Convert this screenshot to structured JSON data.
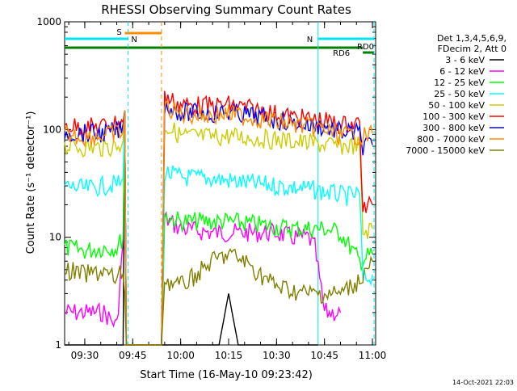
{
  "chart_data": {
    "type": "line",
    "title": "RHESSI Observing Summary Count Rates",
    "xlabel": "Start Time (16-May-10 09:23:42)",
    "ylabel": "Count Rate (s⁻¹ detector⁻¹)",
    "yscale": "log",
    "ylim": [
      1,
      1000
    ],
    "xlim": [
      "09:23:42",
      "11:01:00"
    ],
    "x_ticks": [
      "09:30",
      "09:45",
      "10:00",
      "10:15",
      "10:30",
      "10:45",
      "11:00"
    ],
    "y_ticks": [
      "1",
      "10",
      "100",
      "1000"
    ],
    "legend_header": [
      "Det 1,3,4,5,6,9,",
      "FDecim 2, Att 0"
    ],
    "legend_position": "right",
    "footer_timestamp": "14-Oct-2021 22:03",
    "flags": [
      {
        "label": "S",
        "color": "#ff8c00",
        "start": "09:42:30",
        "end": "09:54:00",
        "level": "upper"
      },
      {
        "label": "N",
        "color": "#00e5ee",
        "start": "09:23:42",
        "end": "09:43:30",
        "level": "upper-2"
      },
      {
        "label": "N",
        "color": "#00e5ee",
        "start": "10:43:00",
        "end": "11:00:30",
        "level": "upper-2"
      },
      {
        "label": "RD6",
        "color": "#008000",
        "start": "09:23:42",
        "end": "10:57:00",
        "level": "middle"
      },
      {
        "label": "RD0",
        "color": "#008000",
        "start": "10:57:00",
        "end": "11:00:30",
        "level": "upper-3"
      }
    ],
    "vertical_lines": [
      {
        "time": "09:43:30",
        "color": "#00e5ee",
        "style": "dashed"
      },
      {
        "time": "09:54:00",
        "color": "#ff8c00",
        "style": "dashed"
      },
      {
        "time": "10:43:00",
        "color": "#00e5ee",
        "style": "solid"
      },
      {
        "time": "11:00:30",
        "color": "#00e5ee",
        "style": "dashed"
      }
    ],
    "series": [
      {
        "name": "3 - 6 keV",
        "color": "#000000",
        "points": [
          [
            "09:23:42",
            1
          ],
          [
            "09:42:00",
            1
          ],
          [
            "09:42:30",
            150
          ],
          [
            "09:43:00",
            1
          ],
          [
            "10:12:00",
            1
          ],
          [
            "10:15:00",
            3
          ],
          [
            "10:18:00",
            1
          ],
          [
            "10:43:00",
            1
          ]
        ]
      },
      {
        "name": "6 - 12 keV",
        "color": "#ff00ff",
        "points": [
          [
            "09:23:42",
            2
          ],
          [
            "09:30:00",
            2
          ],
          [
            "09:36:00",
            2
          ],
          [
            "09:40:00",
            1.5
          ],
          [
            "09:42:00",
            9
          ],
          [
            "09:42:30",
            150
          ],
          [
            "09:43:00",
            1
          ],
          [
            "09:54:00",
            1
          ],
          [
            "09:55:00",
            15
          ],
          [
            "10:00:00",
            12
          ],
          [
            "10:10:00",
            11
          ],
          [
            "10:20:00",
            11
          ],
          [
            "10:30:00",
            11
          ],
          [
            "10:35:00",
            10
          ],
          [
            "10:40:00",
            10
          ],
          [
            "10:42:00",
            8
          ],
          [
            "10:45:00",
            2
          ],
          [
            "10:50:00",
            2
          ]
        ]
      },
      {
        "name": "12 - 25 keV",
        "color": "#00ff00",
        "points": [
          [
            "09:23:42",
            8
          ],
          [
            "09:30:00",
            7.5
          ],
          [
            "09:36:00",
            8
          ],
          [
            "09:40:00",
            8
          ],
          [
            "09:42:00",
            10
          ],
          [
            "09:42:30",
            150
          ],
          [
            "09:43:00",
            1
          ],
          [
            "09:54:00",
            1
          ],
          [
            "09:55:00",
            16
          ],
          [
            "10:00:00",
            14
          ],
          [
            "10:10:00",
            14
          ],
          [
            "10:15:00",
            14
          ],
          [
            "10:25:00",
            13
          ],
          [
            "10:35:00",
            12
          ],
          [
            "10:45:00",
            12
          ],
          [
            "10:50:00",
            11
          ],
          [
            "10:56:00",
            6
          ],
          [
            "11:00:00",
            7
          ]
        ]
      },
      {
        "name": "25 - 50 keV",
        "color": "#00ffff",
        "points": [
          [
            "09:23:42",
            30
          ],
          [
            "09:30:00",
            28
          ],
          [
            "09:36:00",
            30
          ],
          [
            "09:42:00",
            32
          ],
          [
            "09:42:30",
            150
          ],
          [
            "09:43:00",
            1
          ],
          [
            "09:54:00",
            1
          ],
          [
            "09:55:00",
            40
          ],
          [
            "10:00:00",
            36
          ],
          [
            "10:10:00",
            35
          ],
          [
            "10:20:00",
            32
          ],
          [
            "10:30:00",
            30
          ],
          [
            "10:40:00",
            28
          ],
          [
            "10:46:00",
            26
          ],
          [
            "10:52:00",
            24
          ],
          [
            "10:56:00",
            25
          ],
          [
            "10:57:00",
            4
          ],
          [
            "11:00:00",
            4.5
          ]
        ]
      },
      {
        "name": "50 - 100 keV",
        "color": "#cccc00",
        "points": [
          [
            "09:23:42",
            70
          ],
          [
            "09:30:00",
            68
          ],
          [
            "09:36:00",
            68
          ],
          [
            "09:42:00",
            72
          ],
          [
            "09:42:30",
            150
          ],
          [
            "09:43:00",
            1
          ],
          [
            "09:54:00",
            1
          ],
          [
            "09:55:00",
            110
          ],
          [
            "10:00:00",
            88
          ],
          [
            "10:10:00",
            85
          ],
          [
            "10:15:00",
            87
          ],
          [
            "10:25:00",
            82
          ],
          [
            "10:35:00",
            78
          ],
          [
            "10:45:00",
            72
          ],
          [
            "10:50:00",
            70
          ],
          [
            "10:56:00",
            72
          ],
          [
            "10:57:00",
            11
          ],
          [
            "11:00:00",
            12
          ]
        ]
      },
      {
        "name": "100 - 300 keV",
        "color": "#ff0000",
        "points": [
          [
            "09:23:42",
            110
          ],
          [
            "09:30:00",
            105
          ],
          [
            "09:36:00",
            108
          ],
          [
            "09:42:00",
            120
          ],
          [
            "09:42:30",
            150
          ],
          [
            "09:43:00",
            1
          ],
          [
            "09:54:00",
            1
          ],
          [
            "09:55:00",
            200
          ],
          [
            "10:00:00",
            170
          ],
          [
            "10:10:00",
            165
          ],
          [
            "10:15:00",
            170
          ],
          [
            "10:25:00",
            150
          ],
          [
            "10:35:00",
            130
          ],
          [
            "10:45:00",
            120
          ],
          [
            "10:50:00",
            110
          ],
          [
            "10:56:00",
            115
          ],
          [
            "10:57:00",
            18
          ],
          [
            "11:00:00",
            20
          ]
        ]
      },
      {
        "name": "300 - 800 keV",
        "color": "#0000ff",
        "points": [
          [
            "09:23:42",
            95
          ],
          [
            "09:30:00",
            92
          ],
          [
            "09:36:00",
            92
          ],
          [
            "09:42:00",
            100
          ],
          [
            "09:42:30",
            150
          ],
          [
            "09:43:00",
            1
          ],
          [
            "09:54:00",
            1
          ],
          [
            "09:55:00",
            170
          ],
          [
            "10:00:00",
            145
          ],
          [
            "10:10:00",
            140
          ],
          [
            "10:15:00",
            145
          ],
          [
            "10:25:00",
            130
          ],
          [
            "10:35:00",
            115
          ],
          [
            "10:45:00",
            105
          ],
          [
            "10:50:00",
            95
          ],
          [
            "10:56:00",
            92
          ],
          [
            "10:57:00",
            70
          ],
          [
            "11:00:00",
            72
          ]
        ]
      },
      {
        "name": "800 - 7000 keV",
        "color": "#ff8c00",
        "points": [
          [
            "09:23:42",
            90
          ],
          [
            "09:30:00",
            86
          ],
          [
            "09:36:00",
            88
          ],
          [
            "09:42:00",
            95
          ],
          [
            "09:42:30",
            150
          ],
          [
            "09:43:00",
            1
          ],
          [
            "09:54:00",
            1
          ],
          [
            "09:55:00",
            160
          ],
          [
            "10:00:00",
            140
          ],
          [
            "10:10:00",
            135
          ],
          [
            "10:15:00",
            140
          ],
          [
            "10:25:00",
            125
          ],
          [
            "10:35:00",
            112
          ],
          [
            "10:45:00",
            100
          ],
          [
            "10:50:00",
            88
          ],
          [
            "10:56:00",
            88
          ],
          [
            "10:57:00",
            85
          ],
          [
            "11:00:00",
            92
          ]
        ]
      },
      {
        "name": "7000 - 15000 keV",
        "color": "#808000",
        "points": [
          [
            "09:23:42",
            5
          ],
          [
            "09:30:00",
            4.5
          ],
          [
            "09:36:00",
            4.8
          ],
          [
            "09:40:00",
            4
          ],
          [
            "09:42:00",
            5
          ],
          [
            "09:42:30",
            3
          ],
          [
            "09:43:00",
            1
          ],
          [
            "09:54:00",
            1
          ],
          [
            "09:55:00",
            4
          ],
          [
            "10:00:00",
            3.5
          ],
          [
            "10:05:00",
            4.5
          ],
          [
            "10:10:00",
            6
          ],
          [
            "10:15:00",
            7
          ],
          [
            "10:20:00",
            6
          ],
          [
            "10:25:00",
            4.5
          ],
          [
            "10:30:00",
            3.5
          ],
          [
            "10:35:00",
            3.2
          ],
          [
            "10:40:00",
            3
          ],
          [
            "10:45:00",
            3
          ],
          [
            "10:50:00",
            3
          ],
          [
            "10:56:00",
            4
          ],
          [
            "11:00:00",
            6
          ]
        ]
      }
    ]
  }
}
